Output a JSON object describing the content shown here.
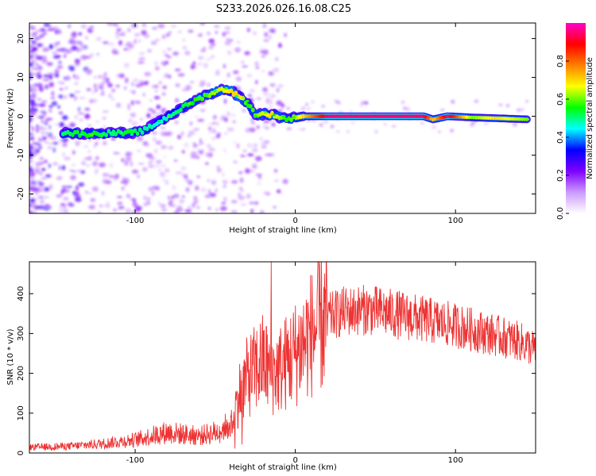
{
  "title": "S233.2026.026.16.08.C25",
  "chart_data": [
    {
      "type": "heatmap",
      "xlabel": "Height of straight line (km)",
      "ylabel": "Frequency (Hz)",
      "xlim": [
        -166,
        150
      ],
      "ylim": [
        -25,
        24
      ],
      "xticks": [
        -100,
        0,
        100
      ],
      "yticks": [
        -20,
        -10,
        0,
        10,
        20
      ],
      "colorbar": {
        "label": "Normalized spectral amplitude",
        "range": [
          0,
          1
        ],
        "ticks": [
          "0.0",
          "0.2",
          "0.4",
          "0.6",
          "0.8"
        ],
        "tick_values": [
          0.0,
          0.2,
          0.4,
          0.6,
          0.8
        ],
        "colors": [
          "#ffffff",
          "#cc99ff",
          "#7f00ff",
          "#0000ff",
          "#00ffff",
          "#00ff00",
          "#ffff00",
          "#ff7f00",
          "#ff0000",
          "#ff00cc"
        ]
      },
      "ridge": [
        {
          "x": -145,
          "y": -4.2,
          "a": 0.5
        },
        {
          "x": -135,
          "y": -4.5,
          "a": 0.55
        },
        {
          "x": -125,
          "y": -4.6,
          "a": 0.55
        },
        {
          "x": -115,
          "y": -4.2,
          "a": 0.5
        },
        {
          "x": -105,
          "y": -4.4,
          "a": 0.55
        },
        {
          "x": -95,
          "y": -3.8,
          "a": 0.5
        },
        {
          "x": -85,
          "y": -1.5,
          "a": 0.45
        },
        {
          "x": -75,
          "y": 1.0,
          "a": 0.5
        },
        {
          "x": -65,
          "y": 3.5,
          "a": 0.55
        },
        {
          "x": -55,
          "y": 5.5,
          "a": 0.6
        },
        {
          "x": -45,
          "y": 7.0,
          "a": 0.65
        },
        {
          "x": -40,
          "y": 6.5,
          "a": 0.7
        },
        {
          "x": -35,
          "y": 5.0,
          "a": 0.7
        },
        {
          "x": -30,
          "y": 3.5,
          "a": 0.55
        },
        {
          "x": -25,
          "y": 0.5,
          "a": 0.6
        },
        {
          "x": -15,
          "y": 0.5,
          "a": 0.7
        },
        {
          "x": -5,
          "y": -0.8,
          "a": 0.55
        },
        {
          "x": 5,
          "y": 0.0,
          "a": 0.7
        },
        {
          "x": 20,
          "y": 0.0,
          "a": 0.95
        },
        {
          "x": 40,
          "y": 0.0,
          "a": 0.95
        },
        {
          "x": 60,
          "y": 0.0,
          "a": 0.95
        },
        {
          "x": 80,
          "y": 0.0,
          "a": 0.95
        },
        {
          "x": 86,
          "y": -0.8,
          "a": 0.7
        },
        {
          "x": 95,
          "y": 0.0,
          "a": 0.95
        },
        {
          "x": 110,
          "y": -0.3,
          "a": 0.6
        },
        {
          "x": 125,
          "y": -0.5,
          "a": 0.7
        },
        {
          "x": 145,
          "y": -0.8,
          "a": 0.6
        }
      ]
    },
    {
      "type": "line",
      "xlabel": "Height of straight line (km)",
      "ylabel": "SNR (10 * v/v)",
      "xlim": [
        -166,
        150
      ],
      "ylim": [
        0,
        480
      ],
      "xticks": [
        -100,
        0,
        100
      ],
      "yticks": [
        0,
        100,
        200,
        300,
        400
      ],
      "color": "#ee3333",
      "envelope": [
        {
          "x": -166,
          "y": 15
        },
        {
          "x": -140,
          "y": 18
        },
        {
          "x": -120,
          "y": 25
        },
        {
          "x": -100,
          "y": 35
        },
        {
          "x": -90,
          "y": 45
        },
        {
          "x": -80,
          "y": 55
        },
        {
          "x": -70,
          "y": 50
        },
        {
          "x": -60,
          "y": 45
        },
        {
          "x": -50,
          "y": 55
        },
        {
          "x": -40,
          "y": 70
        },
        {
          "x": -35,
          "y": 150
        },
        {
          "x": -30,
          "y": 190
        },
        {
          "x": -25,
          "y": 210
        },
        {
          "x": -20,
          "y": 230
        },
        {
          "x": -15,
          "y": 200
        },
        {
          "x": -10,
          "y": 210
        },
        {
          "x": -5,
          "y": 230
        },
        {
          "x": 0,
          "y": 250
        },
        {
          "x": 10,
          "y": 300
        },
        {
          "x": 20,
          "y": 340
        },
        {
          "x": 30,
          "y": 355
        },
        {
          "x": 45,
          "y": 360
        },
        {
          "x": 60,
          "y": 350
        },
        {
          "x": 80,
          "y": 335
        },
        {
          "x": 100,
          "y": 320
        },
        {
          "x": 120,
          "y": 300
        },
        {
          "x": 140,
          "y": 280
        },
        {
          "x": 150,
          "y": 260
        }
      ],
      "spike": {
        "x": -15,
        "y": 480
      }
    }
  ]
}
